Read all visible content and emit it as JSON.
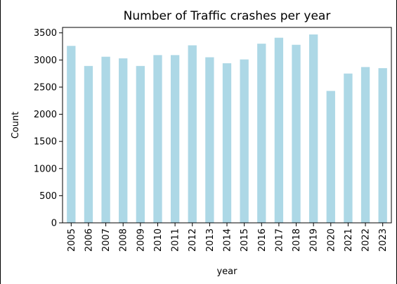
{
  "chart_data": {
    "type": "bar",
    "title": "Number of Traffic crashes per year",
    "xlabel": "year",
    "ylabel": "Count",
    "categories": [
      "2005",
      "2006",
      "2007",
      "2008",
      "2009",
      "2010",
      "2011",
      "2012",
      "2013",
      "2014",
      "2015",
      "2016",
      "2017",
      "2018",
      "2019",
      "2020",
      "2021",
      "2022",
      "2023"
    ],
    "values": [
      3260,
      2890,
      3060,
      3030,
      2890,
      3090,
      3090,
      3270,
      3050,
      2940,
      3010,
      3300,
      3410,
      3280,
      3470,
      2430,
      2750,
      2870,
      2850
    ],
    "ylim": [
      0,
      3600
    ],
    "yticks": [
      0,
      500,
      1000,
      1500,
      2000,
      2500,
      3000,
      3500
    ],
    "bar_color": "#add8e6",
    "grid": false
  }
}
